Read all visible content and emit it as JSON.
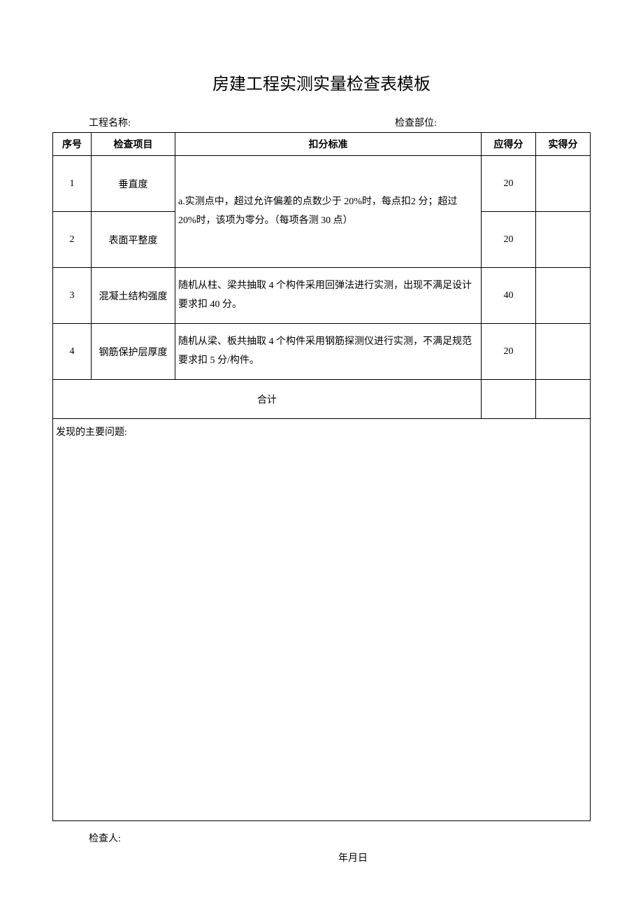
{
  "title": "房建工程实测实量检查表模板",
  "meta": {
    "project_label": "工程名称:",
    "project_value": "",
    "part_label": "检查部位:",
    "part_value": ""
  },
  "table": {
    "headers": {
      "seq": "序号",
      "item": "检查项目",
      "criteria": "扣分标准",
      "max_score": "应得分",
      "actual_score": "实得分"
    },
    "rows": [
      {
        "seq": "1",
        "item": "垂直度",
        "max_score": "20",
        "actual_score": ""
      },
      {
        "seq": "2",
        "item": "表面平整度",
        "max_score": "20",
        "actual_score": ""
      },
      {
        "seq": "3",
        "item": "混凝土结构强度",
        "criteria": "随机从柱、梁共抽取 4 个构件采用回弹法进行实测，出现不满足设计要求扣 40 分。",
        "max_score": "40",
        "actual_score": ""
      },
      {
        "seq": "4",
        "item": "钢筋保护层厚度",
        "criteria": "随机从梁、板共抽取 4 个构件采用钢筋探测仪进行实测，不满足规范要求扣 5 分/构件。",
        "max_score": "20",
        "actual_score": ""
      }
    ],
    "merged_criteria_1_2": "a.实测点中，超过允许偏差的点数少于 20%时，每点扣2 分；超过 20%时，该项为零分。（每项各测 30 点）",
    "total_label": "合计",
    "total_max": "",
    "total_actual": "",
    "issues_label": "发现的主要问题:",
    "issues_value": ""
  },
  "footer": {
    "inspector_label": "检查人:",
    "inspector_value": "",
    "date_label": "年月日"
  },
  "style": {
    "page_bg": "#ffffff",
    "text_color": "#000000",
    "border_color": "#000000",
    "title_fontsize": 24,
    "body_fontsize": 14,
    "font_family": "SimSun"
  }
}
